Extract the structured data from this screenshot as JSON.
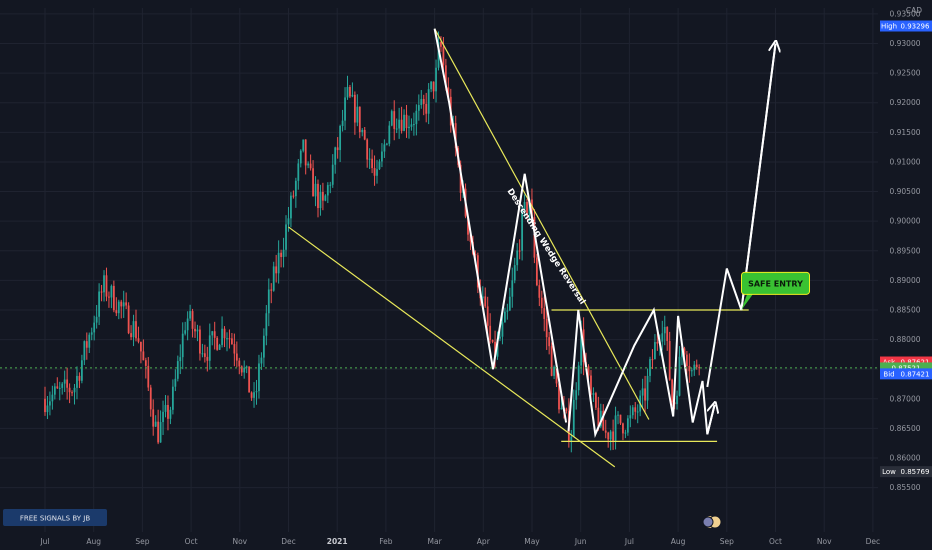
{
  "currency": "CAD",
  "signal_badge": "FREE SIGNALS BY JB",
  "colors": {
    "background": "#131722",
    "grid": "#1f2330",
    "up_candle": "#26a69a",
    "down_candle": "#ef5350",
    "trendline": "#e8e85a",
    "pattern": "#ffffff",
    "bid_dotted": "#4caf50",
    "callout": "#39c232"
  },
  "chart_data": {
    "type": "candlestick",
    "instrument_currency": "CAD",
    "ylim": [
      0.8475,
      0.936
    ],
    "y_ticks": [
      0.855,
      0.86,
      0.865,
      0.87,
      0.875,
      0.88,
      0.885,
      0.89,
      0.895,
      0.9,
      0.905,
      0.91,
      0.915,
      0.92,
      0.925,
      0.93,
      0.935
    ],
    "x_labels": [
      "Jul",
      "Aug",
      "Sep",
      "Oct",
      "Nov",
      "Dec",
      "2021",
      "Feb",
      "Mar",
      "Apr",
      "May",
      "Jun",
      "Jul",
      "Aug",
      "Sep",
      "Oct",
      "Nov",
      "Dec"
    ],
    "price_tags": [
      {
        "label": "High",
        "value": "0.93296",
        "price": 0.93296,
        "color": "#2962ff"
      },
      {
        "label": "Ask",
        "value": "0.87621",
        "price": 0.87621,
        "color": "#f23645"
      },
      {
        "label": "",
        "value": "0.87521",
        "price": 0.87521,
        "color": "#4caf50"
      },
      {
        "label": "Bid",
        "value": "0.87421",
        "price": 0.87421,
        "color": "#2962ff"
      },
      {
        "label": "Low",
        "value": "0.85769",
        "price": 0.85769,
        "color": "#2a2e39"
      }
    ],
    "current_price": 0.87521,
    "close_path": [
      {
        "t": 0.0,
        "p": 0.87
      },
      {
        "t": 0.6,
        "p": 0.872
      },
      {
        "t": 1.2,
        "p": 0.889
      },
      {
        "t": 1.5,
        "p": 0.886
      },
      {
        "t": 1.9,
        "p": 0.881
      },
      {
        "t": 2.3,
        "p": 0.864
      },
      {
        "t": 2.6,
        "p": 0.869
      },
      {
        "t": 2.9,
        "p": 0.884
      },
      {
        "t": 3.3,
        "p": 0.878
      },
      {
        "t": 3.7,
        "p": 0.882
      },
      {
        "t": 4.0,
        "p": 0.877
      },
      {
        "t": 4.3,
        "p": 0.869
      },
      {
        "t": 4.6,
        "p": 0.887
      },
      {
        "t": 4.9,
        "p": 0.897
      },
      {
        "t": 5.3,
        "p": 0.912
      },
      {
        "t": 5.4,
        "p": 0.908
      },
      {
        "t": 5.7,
        "p": 0.902
      },
      {
        "t": 6.0,
        "p": 0.912
      },
      {
        "t": 6.2,
        "p": 0.921
      },
      {
        "t": 6.4,
        "p": 0.918
      },
      {
        "t": 6.6,
        "p": 0.913
      },
      {
        "t": 6.8,
        "p": 0.906
      },
      {
        "t": 7.1,
        "p": 0.918
      },
      {
        "t": 7.5,
        "p": 0.917
      },
      {
        "t": 7.8,
        "p": 0.919
      },
      {
        "t": 8.05,
        "p": 0.925
      },
      {
        "t": 8.1,
        "p": 0.931
      },
      {
        "t": 8.3,
        "p": 0.919
      },
      {
        "t": 8.6,
        "p": 0.903
      },
      {
        "t": 8.9,
        "p": 0.89
      },
      {
        "t": 9.2,
        "p": 0.877
      },
      {
        "t": 9.5,
        "p": 0.884
      },
      {
        "t": 9.8,
        "p": 0.9
      },
      {
        "t": 9.95,
        "p": 0.904
      },
      {
        "t": 10.1,
        "p": 0.89
      },
      {
        "t": 10.4,
        "p": 0.876
      },
      {
        "t": 10.6,
        "p": 0.868
      },
      {
        "t": 10.8,
        "p": 0.864
      },
      {
        "t": 11.0,
        "p": 0.881
      },
      {
        "t": 11.2,
        "p": 0.87
      },
      {
        "t": 11.5,
        "p": 0.864
      },
      {
        "t": 11.8,
        "p": 0.866
      },
      {
        "t": 12.0,
        "p": 0.866
      },
      {
        "t": 12.3,
        "p": 0.87
      },
      {
        "t": 12.5,
        "p": 0.878
      },
      {
        "t": 12.7,
        "p": 0.884
      },
      {
        "t": 12.9,
        "p": 0.868
      },
      {
        "t": 13.1,
        "p": 0.88
      },
      {
        "t": 13.3,
        "p": 0.874
      },
      {
        "t": 13.45,
        "p": 0.878
      }
    ],
    "annotations": [
      {
        "type": "trendline",
        "name": "wedge-upper",
        "points": [
          {
            "t": 8.0,
            "p": 0.9325
          },
          {
            "t": 12.4,
            "p": 0.8665
          }
        ]
      },
      {
        "type": "trendline",
        "name": "wedge-lower",
        "points": [
          {
            "t": 5.0,
            "p": 0.899
          },
          {
            "t": 11.7,
            "p": 0.8585
          }
        ]
      },
      {
        "type": "trendline",
        "name": "resistance",
        "points": [
          {
            "t": 10.4,
            "p": 0.885
          },
          {
            "t": 14.45,
            "p": 0.885
          }
        ]
      },
      {
        "type": "trendline",
        "name": "support",
        "points": [
          {
            "t": 10.6,
            "p": 0.8628
          },
          {
            "t": 13.8,
            "p": 0.8628
          }
        ]
      },
      {
        "type": "pattern",
        "name": "wedge-zigzag",
        "points": [
          {
            "t": 8.0,
            "p": 0.9325
          },
          {
            "t": 8.3,
            "p": 0.92
          },
          {
            "t": 9.2,
            "p": 0.875
          },
          {
            "t": 9.85,
            "p": 0.908
          },
          {
            "t": 10.7,
            "p": 0.866
          }
        ]
      },
      {
        "type": "pattern",
        "name": "range-zigzag",
        "points": [
          {
            "t": 10.75,
            "p": 0.8645
          },
          {
            "t": 10.95,
            "p": 0.885
          },
          {
            "t": 11.3,
            "p": 0.864
          },
          {
            "t": 12.1,
            "p": 0.879
          },
          {
            "t": 12.5,
            "p": 0.885
          },
          {
            "t": 12.9,
            "p": 0.867
          },
          {
            "t": 13.0,
            "p": 0.884
          },
          {
            "t": 13.3,
            "p": 0.866
          },
          {
            "t": 13.5,
            "p": 0.873
          },
          {
            "t": 13.6,
            "p": 0.864
          },
          {
            "t": 13.75,
            "p": 0.869
          }
        ]
      },
      {
        "type": "arrow",
        "name": "breakout-arrow",
        "points": [
          {
            "t": 13.6,
            "p": 0.872
          },
          {
            "t": 14.0,
            "p": 0.892
          },
          {
            "t": 14.3,
            "p": 0.885
          },
          {
            "t": 15.0,
            "p": 0.93
          }
        ]
      },
      {
        "type": "text",
        "name": "pattern-label",
        "text": "Descending Wedge Reversal",
        "at": {
          "t": 10.25,
          "p": 0.8955
        }
      },
      {
        "type": "callout",
        "name": "entry-callout",
        "text": "SAFE ENTRY",
        "at": {
          "t": 15.0,
          "p": 0.8895
        },
        "points_to": {
          "t": 14.3,
          "p": 0.885
        }
      }
    ]
  }
}
